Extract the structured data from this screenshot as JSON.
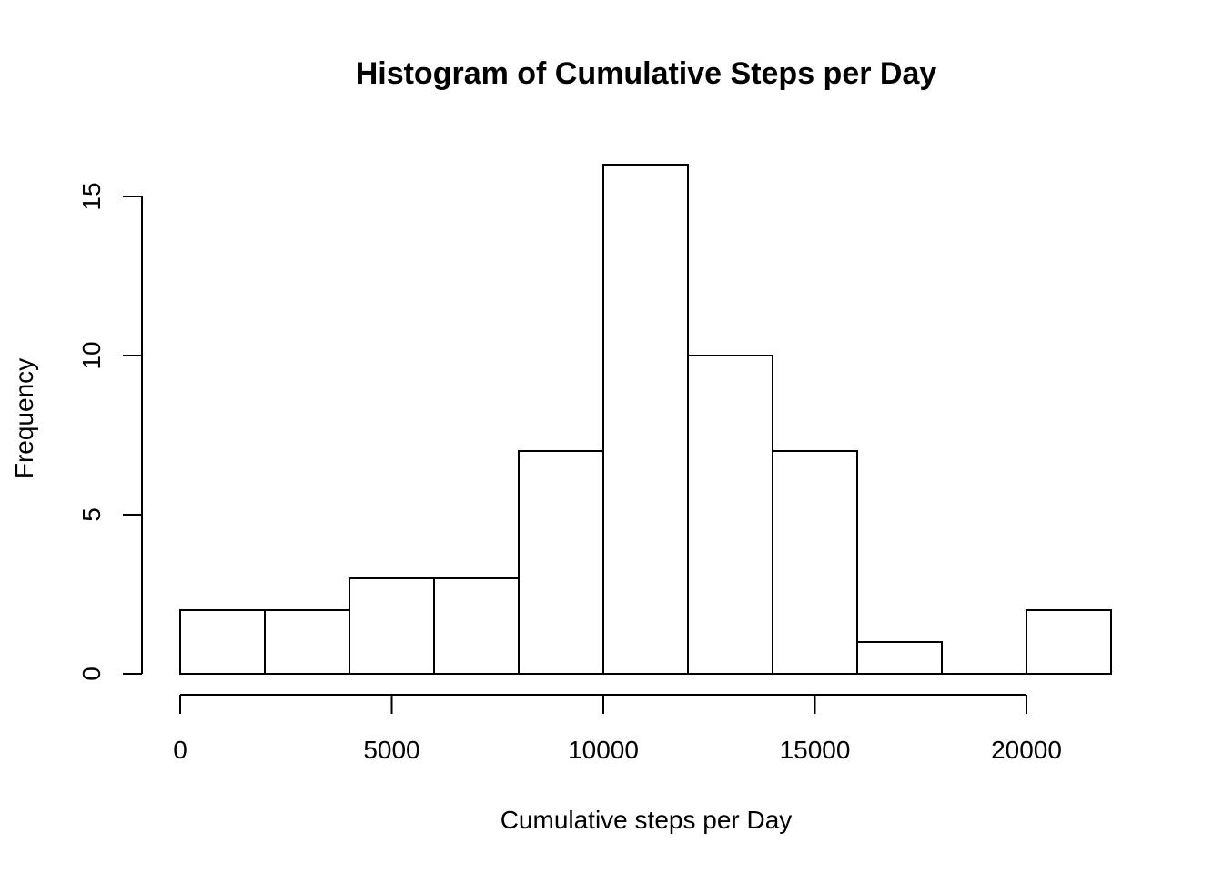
{
  "chart_data": {
    "type": "bar",
    "title": "Histogram of Cumulative Steps per Day",
    "xlabel": "Cumulative steps per Day",
    "ylabel": "Frequency",
    "bins": [
      {
        "start": 0,
        "end": 2000,
        "count": 2
      },
      {
        "start": 2000,
        "end": 4000,
        "count": 2
      },
      {
        "start": 4000,
        "end": 6000,
        "count": 3
      },
      {
        "start": 6000,
        "end": 8000,
        "count": 3
      },
      {
        "start": 8000,
        "end": 10000,
        "count": 7
      },
      {
        "start": 10000,
        "end": 12000,
        "count": 16
      },
      {
        "start": 12000,
        "end": 14000,
        "count": 10
      },
      {
        "start": 14000,
        "end": 16000,
        "count": 7
      },
      {
        "start": 16000,
        "end": 18000,
        "count": 1
      },
      {
        "start": 18000,
        "end": 20000,
        "count": 0
      },
      {
        "start": 20000,
        "end": 22000,
        "count": 2
      }
    ],
    "xticks": [
      0,
      5000,
      10000,
      15000,
      20000
    ],
    "xtick_labels": [
      "0",
      "5000",
      "10000",
      "15000",
      "20000"
    ],
    "yticks": [
      0,
      5,
      10,
      15
    ],
    "ytick_labels": [
      "0",
      "5",
      "10",
      "15"
    ],
    "xlim": [
      0,
      22000
    ],
    "ylim": [
      0,
      16
    ],
    "grid": false,
    "bar_fill": "#ffffff",
    "bar_stroke": "#000000"
  }
}
